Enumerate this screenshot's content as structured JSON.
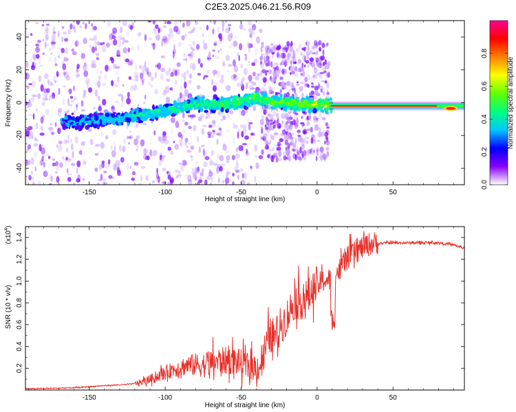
{
  "title": "C2E3.2025.046.21.56.R09",
  "colors": {
    "snr_line": "#e8302a",
    "axis": "#000000"
  },
  "chart_data": [
    {
      "type": "heatmap",
      "name": "spectrogram",
      "xlabel": "Height of straight line (km)",
      "ylabel": "Frequency (Hz)",
      "xlim": [
        -192,
        97
      ],
      "ylim": [
        -50,
        50
      ],
      "xticks": [
        -150,
        -100,
        -50,
        0,
        50
      ],
      "yticks": [
        -40,
        -20,
        0,
        20,
        40
      ],
      "grid": false,
      "ridge": {
        "x": [
          -165,
          -150,
          -140,
          -130,
          -120,
          -110,
          -100,
          -90,
          -80,
          -70,
          -60,
          -50,
          -45,
          -40,
          -35,
          -30,
          -20,
          -10,
          0,
          10,
          30,
          50,
          70,
          80,
          90,
          97
        ],
        "y": [
          -12,
          -11,
          -10,
          -10,
          -8,
          -7,
          -5,
          -3,
          -1,
          -1,
          -1,
          1,
          2,
          3,
          2,
          0,
          0,
          -1,
          -1,
          -2,
          -2,
          -2,
          -2,
          -3,
          -3,
          -3
        ]
      },
      "colorbar": {
        "label": "Normalized spectral amplitude",
        "range": [
          0,
          1
        ],
        "ticks": [
          "0.0",
          "0.2",
          "0.4",
          "0.6",
          "0.8"
        ],
        "tick_values": [
          0,
          0.2,
          0.4,
          0.6,
          0.8
        ],
        "colormap": [
          "#ffffff",
          "#8800ff",
          "#0000ff",
          "#00c8ff",
          "#00ff80",
          "#60ff00",
          "#ffff00",
          "#ff8000",
          "#ff0000",
          "#ff0090"
        ]
      }
    },
    {
      "type": "line",
      "name": "snr",
      "xlabel": "Height of straight line (km)",
      "ylabel": "SNR (10 * v/v)",
      "y_multiplier": "(x10",
      "y_multiplier_exp": "4",
      "y_multiplier_close": ")",
      "xlim": [
        -192,
        97
      ],
      "ylim": [
        0,
        1.5
      ],
      "xticks": [
        -150,
        -100,
        -50,
        0,
        50
      ],
      "yticks": [
        "0.2",
        "0.4",
        "0.6",
        "0.8",
        "1.0",
        "1.2",
        "1.4"
      ],
      "ytick_values": [
        0.2,
        0.4,
        0.6,
        0.8,
        1.0,
        1.2,
        1.4
      ],
      "grid": false,
      "series": [
        {
          "x": [
            -192,
            -160,
            -140,
            -125,
            -115,
            -105,
            -95,
            -85,
            -75,
            -65,
            -55,
            -45,
            -38,
            -33,
            -30,
            -28,
            -25,
            -20,
            -15,
            -10,
            -5,
            0,
            5,
            10,
            15,
            20,
            25,
            30,
            35,
            40,
            45,
            50,
            60,
            70,
            80,
            90,
            97
          ],
          "y": [
            0.01,
            0.02,
            0.04,
            0.05,
            0.07,
            0.12,
            0.18,
            0.22,
            0.22,
            0.25,
            0.26,
            0.2,
            0.2,
            0.4,
            0.5,
            0.45,
            0.55,
            0.65,
            0.8,
            0.8,
            0.85,
            0.95,
            1.0,
            1.0,
            1.1,
            1.2,
            1.25,
            1.3,
            1.33,
            1.34,
            1.35,
            1.35,
            1.35,
            1.35,
            1.35,
            1.33,
            1.3
          ]
        }
      ]
    }
  ]
}
